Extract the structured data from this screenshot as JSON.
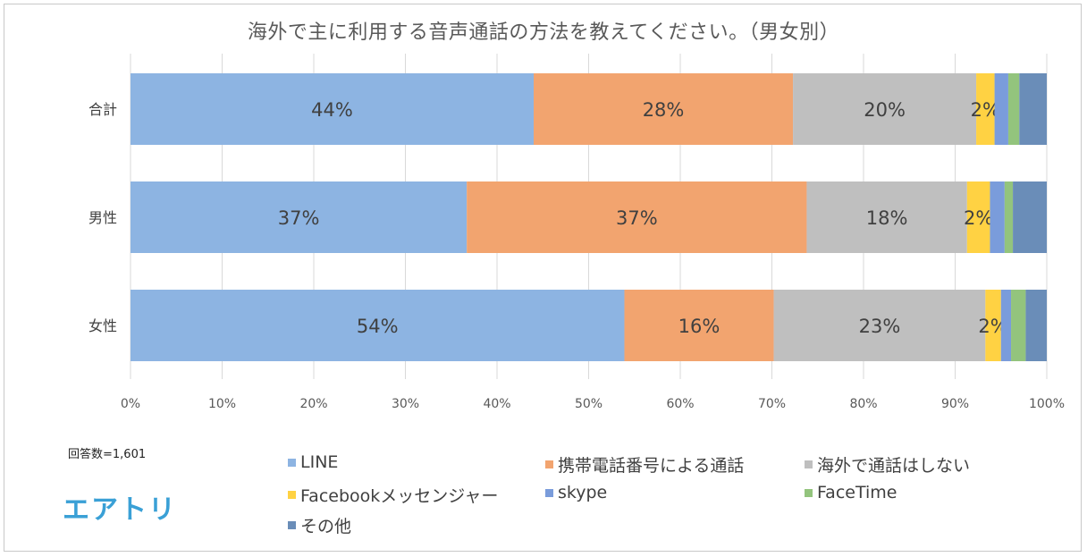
{
  "chart_data": {
    "type": "bar",
    "orientation": "horizontal",
    "stacked": true,
    "title": "海外で主に利用する音声通話の方法を教えてください。（男女別）",
    "categories": [
      "合計",
      "男性",
      "女性"
    ],
    "xlim": [
      0,
      100
    ],
    "x_ticks": [
      "0%",
      "10%",
      "20%",
      "30%",
      "40%",
      "50%",
      "60%",
      "70%",
      "80%",
      "90%",
      "100%"
    ],
    "grid": "vertical",
    "legend_position": "bottom",
    "series": [
      {
        "name": "LINE",
        "color": "#8db4e2",
        "values": [
          44,
          36.7,
          53.9
        ],
        "labels": [
          "44%",
          "37%",
          "54%"
        ]
      },
      {
        "name": "携帯電話番号による通話",
        "color": "#f2a46f",
        "values": [
          28.3,
          37.1,
          16.3
        ],
        "labels": [
          "28%",
          "37%",
          "16%"
        ]
      },
      {
        "name": "海外で通話はしない",
        "color": "#bfbfbf",
        "values": [
          20,
          17.5,
          23.1
        ],
        "labels": [
          "20%",
          "18%",
          "23%"
        ]
      },
      {
        "name": "Facebookメッセンジャー",
        "color": "#ffd243",
        "values": [
          2,
          2.5,
          1.7
        ],
        "labels": [
          "2%",
          "2%",
          "2%"
        ]
      },
      {
        "name": "skype",
        "color": "#7a9cdb",
        "values": [
          1.5,
          1.6,
          1.1
        ],
        "labels": [
          "",
          "",
          ""
        ]
      },
      {
        "name": "FaceTime",
        "color": "#93c47d",
        "values": [
          1.2,
          0.9,
          1.6
        ],
        "labels": [
          "",
          "",
          ""
        ]
      },
      {
        "name": "その他",
        "color": "#6a8db8",
        "values": [
          3,
          3.7,
          2.3
        ],
        "labels": [
          "",
          "",
          ""
        ]
      }
    ]
  },
  "footer": {
    "answers": "回答数=1,601",
    "logo": "エアトリ"
  }
}
